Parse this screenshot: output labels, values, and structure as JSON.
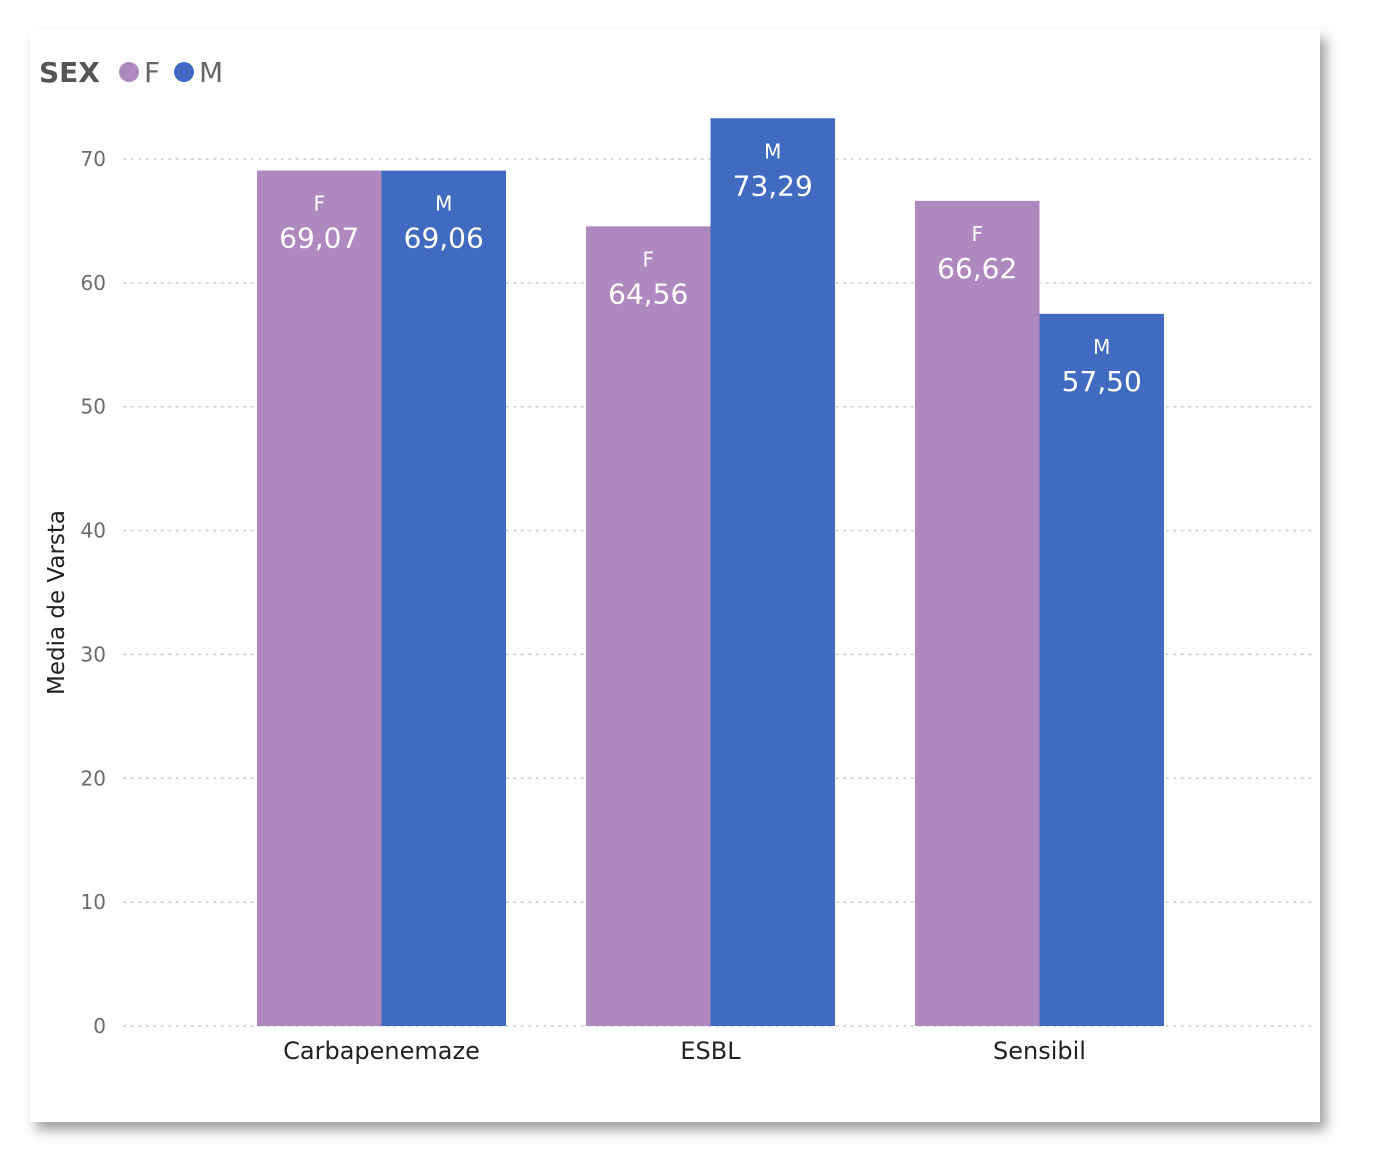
{
  "chart_data": {
    "type": "bar",
    "legend": {
      "title": "SEX",
      "placement": "top-left"
    },
    "categories": [
      "Carbapenemaze",
      "ESBL",
      "Sensibil"
    ],
    "series": [
      {
        "name": "F",
        "color": "#af88bf",
        "values": [
          69.07,
          64.56,
          66.62
        ],
        "value_labels": [
          "69,07",
          "64,56",
          "66,62"
        ]
      },
      {
        "name": "M",
        "color": "#416bc0",
        "values": [
          69.06,
          73.29,
          57.5
        ],
        "value_labels": [
          "69,06",
          "73,29",
          "57,50"
        ]
      }
    ],
    "xlabel": "",
    "ylabel": "Media de Varsta",
    "ylim": [
      0,
      70
    ],
    "yticks": [
      0,
      10,
      20,
      30,
      40,
      50,
      60,
      70
    ],
    "grid": true
  }
}
